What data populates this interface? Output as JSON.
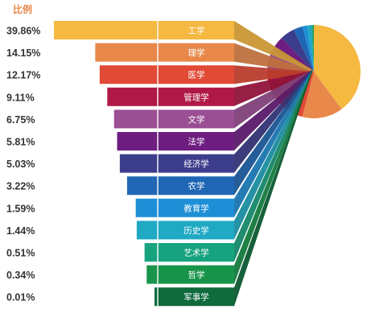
{
  "chart_data": {
    "type": "bar",
    "ylabel": "比例",
    "categories": [
      "工学",
      "理学",
      "医学",
      "管理学",
      "文学",
      "法学",
      "经济学",
      "农学",
      "教育学",
      "历史学",
      "艺术学",
      "哲学",
      "军事学"
    ],
    "values": [
      39.86,
      14.15,
      12.17,
      9.11,
      6.75,
      5.81,
      5.03,
      3.22,
      1.59,
      1.44,
      0.51,
      0.34,
      0.01
    ],
    "value_labels": [
      "39.86%",
      "14.15%",
      "12.17%",
      "9.11%",
      "6.75%",
      "5.81%",
      "5.03%",
      "3.22%",
      "1.59%",
      "1.44%",
      "0.51%",
      "0.34%",
      "0.01%"
    ],
    "colors": [
      "#F5B841",
      "#E8884A",
      "#E04A37",
      "#B01848",
      "#9A4E93",
      "#6E1E80",
      "#3C3D8C",
      "#1F67B5",
      "#1E8FD6",
      "#1FA9C3",
      "#18A37F",
      "#179449",
      "#0F6A3C"
    ],
    "pie": true,
    "accent_color": "#E8884A"
  }
}
